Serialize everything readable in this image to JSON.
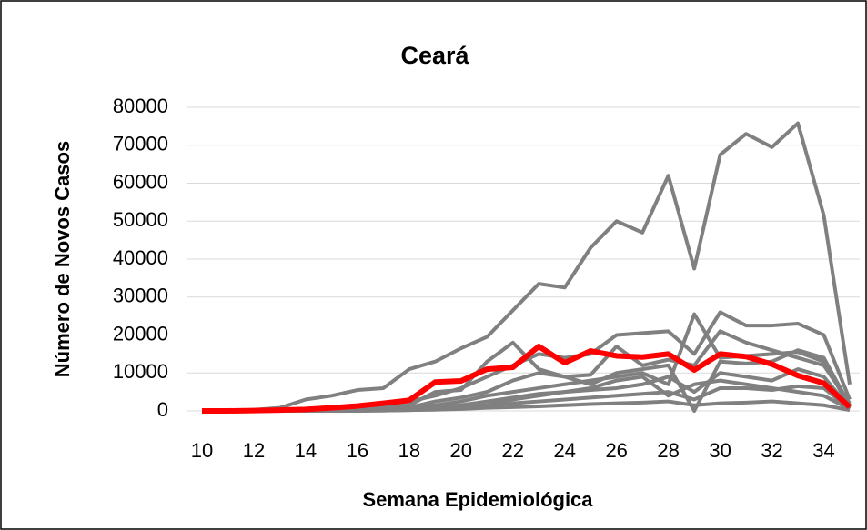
{
  "chart_data": {
    "type": "line",
    "title": "Ceará",
    "xlabel": "Semana Epidemiológica",
    "ylabel": "Número de Novos Casos",
    "x": [
      10,
      11,
      12,
      13,
      14,
      15,
      16,
      17,
      18,
      19,
      20,
      21,
      22,
      23,
      24,
      25,
      26,
      27,
      28,
      29,
      30,
      31,
      32,
      33,
      34,
      35
    ],
    "xlim": [
      10,
      35
    ],
    "xticks": [
      10,
      12,
      14,
      16,
      18,
      20,
      22,
      24,
      26,
      28,
      30,
      32,
      34
    ],
    "ylim": [
      0,
      80000
    ],
    "yticks": [
      0,
      10000,
      20000,
      30000,
      40000,
      50000,
      60000,
      70000,
      80000
    ],
    "grid": true,
    "series": [
      {
        "color": "#808080",
        "values": [
          0,
          0,
          300,
          800,
          3000,
          4000,
          5500,
          6000,
          11000,
          13000,
          16500,
          19500,
          26500,
          33500,
          32500,
          43000,
          50000,
          47000,
          62000,
          37500,
          67500,
          73000,
          69500,
          75800,
          51500,
          7000
        ]
      },
      {
        "color": "#808080",
        "values": [
          0,
          0,
          0,
          100,
          300,
          600,
          1000,
          1500,
          2500,
          4000,
          6000,
          9000,
          12000,
          15000,
          14000,
          15000,
          20000,
          20500,
          21000,
          15000,
          26000,
          22500,
          22500,
          23000,
          20000,
          3000
        ]
      },
      {
        "color": "#808080",
        "values": [
          0,
          0,
          0,
          0,
          100,
          300,
          500,
          900,
          1500,
          5000,
          5500,
          13000,
          18000,
          11000,
          9000,
          9500,
          17000,
          12000,
          13500,
          12000,
          21000,
          18000,
          16000,
          14000,
          12000,
          2000
        ]
      },
      {
        "color": "#808080",
        "values": [
          0,
          0,
          0,
          0,
          100,
          200,
          300,
          600,
          900,
          2500,
          3500,
          5000,
          8000,
          10000,
          9000,
          7000,
          10000,
          11000,
          12000,
          0,
          13000,
          12500,
          13000,
          16000,
          14000,
          1500
        ]
      },
      {
        "color": "#808080",
        "values": [
          0,
          0,
          0,
          0,
          0,
          100,
          200,
          400,
          600,
          1500,
          2500,
          4000,
          5000,
          6000,
          7000,
          8000,
          9000,
          10000,
          7000,
          25500,
          14000,
          14500,
          15000,
          15500,
          13000,
          1000
        ]
      },
      {
        "color": "#808080",
        "values": [
          0,
          0,
          0,
          0,
          0,
          100,
          150,
          300,
          500,
          1000,
          1500,
          2500,
          3500,
          4500,
          5000,
          5500,
          6000,
          7000,
          9000,
          5000,
          10000,
          9000,
          8000,
          11000,
          9000,
          800
        ]
      },
      {
        "color": "#808080",
        "values": [
          0,
          0,
          0,
          0,
          0,
          50,
          100,
          200,
          300,
          600,
          1000,
          1500,
          2000,
          2500,
          3000,
          3500,
          4000,
          4500,
          5000,
          3000,
          6000,
          6000,
          5500,
          6500,
          6000,
          500
        ]
      },
      {
        "color": "#808080",
        "values": [
          0,
          0,
          0,
          0,
          0,
          0,
          50,
          100,
          200,
          300,
          500,
          800,
          1000,
          1200,
          1500,
          1800,
          2000,
          2200,
          2500,
          1500,
          2000,
          2200,
          2500,
          2000,
          1500,
          200
        ]
      },
      {
        "color": "#808080",
        "values": [
          0,
          0,
          0,
          0,
          0,
          0,
          0,
          100,
          200,
          500,
          800,
          1500,
          3000,
          4000,
          5000,
          6000,
          8000,
          9000,
          4000,
          7000,
          8000,
          7000,
          6000,
          5000,
          4000,
          500
        ]
      },
      {
        "color": "#ff0000",
        "values": [
          0,
          0,
          100,
          200,
          400,
          800,
          1300,
          2000,
          2800,
          7600,
          7900,
          11000,
          11500,
          17000,
          12700,
          15800,
          14500,
          14200,
          15000,
          10800,
          15000,
          14300,
          12300,
          9300,
          7300,
          1000
        ]
      }
    ]
  }
}
